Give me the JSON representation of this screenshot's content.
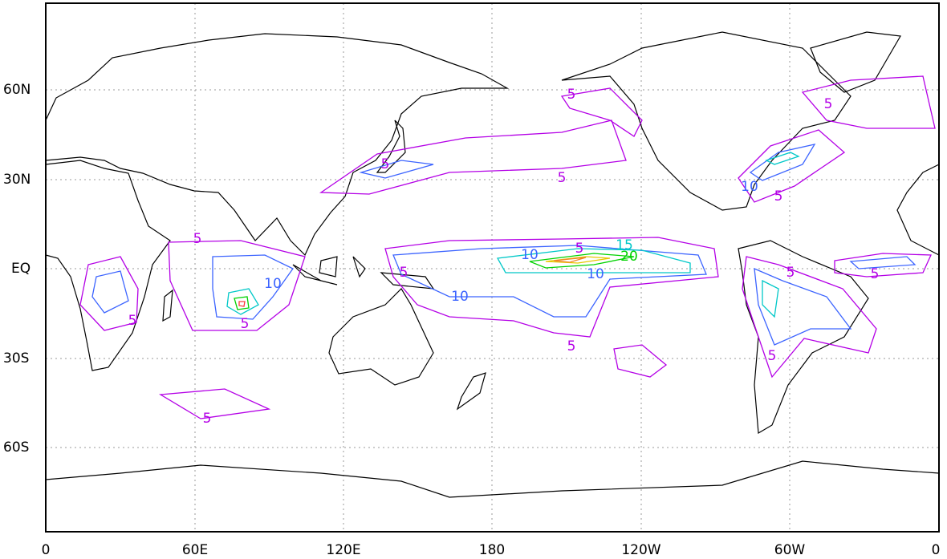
{
  "map": {
    "lat_labels": [
      "60N",
      "30N",
      "EQ",
      "30S",
      "60S"
    ],
    "lon_labels": [
      "0",
      "60E",
      "120E",
      "180",
      "120W",
      "60W",
      "0"
    ],
    "contour_labels": [
      "5",
      "5",
      "5",
      "5",
      "10",
      "5",
      "5",
      "10",
      "5",
      "15",
      "20",
      "10",
      "5",
      "10",
      "10",
      "5",
      "5",
      "5",
      "5",
      "5",
      "5",
      "5"
    ]
  }
}
